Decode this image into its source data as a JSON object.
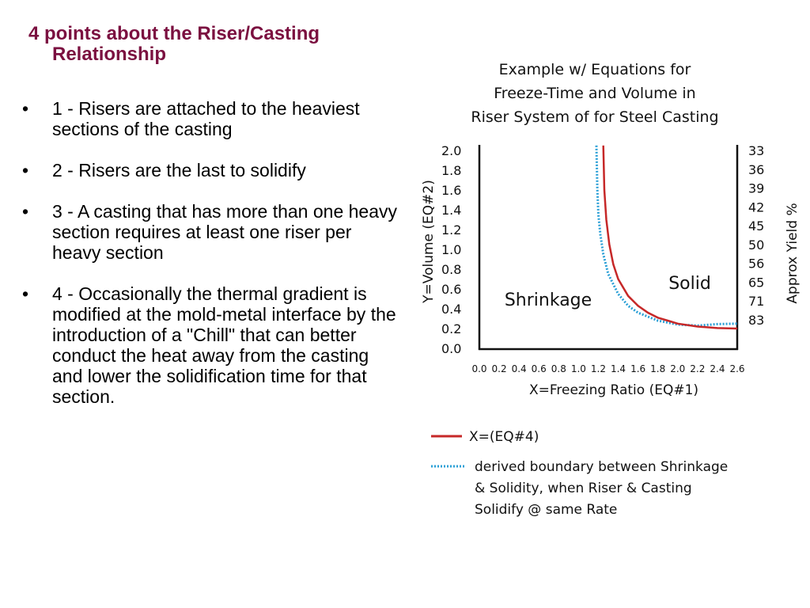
{
  "slide": {
    "title_line1": "4 points about the Riser/Casting",
    "title_line2": "Relationship",
    "bullets": [
      "1 - Risers are attached to the heaviest sections of the casting",
      "2 - Risers are the last to solidify",
      "3 - A casting that has more than one heavy section requires at least one riser per heavy section",
      "4 - Occasionally the thermal gradient is modified at the mold-metal interface by the introduction of a \"Chill\" that can better conduct the heat away from the casting and lower the solidification time for that section."
    ]
  },
  "colors": {
    "title": "#7b1040",
    "red_curve": "#c62828",
    "blue_curve": "#2a9fd6"
  },
  "chart_data": {
    "type": "line",
    "title": [
      "Example w/ Equations for",
      "Freeze-Time and Volume in",
      "Riser System of for Steel Casting"
    ],
    "xlabel": "X=Freezing Ratio (EQ#1)",
    "ylabel": "Y=Volume (EQ#2)",
    "y2label": "Approx Yield %",
    "xlim": [
      0.0,
      2.6
    ],
    "ylim": [
      0.0,
      2.0
    ],
    "x_ticks": [
      "0.0",
      "0.2",
      "0.4",
      "0.6",
      "0.8",
      "1.0",
      "1.2",
      "1.4",
      "1.6",
      "1.8",
      "2.0",
      "2.2",
      "2.4",
      "2.6"
    ],
    "y_ticks": [
      "2.0",
      "1.8",
      "1.6",
      "1.4",
      "1.2",
      "1.0",
      "0.8",
      "0.6",
      "0.4",
      "0.2",
      "0.0"
    ],
    "y2_ticks": [
      "33",
      "36",
      "39",
      "42",
      "45",
      "50",
      "56",
      "65",
      "71",
      "83"
    ],
    "region_labels": [
      "Shrinkage",
      "Solid"
    ],
    "grid": false,
    "series": [
      {
        "name": "X=(EQ#4)",
        "style": "solid",
        "points": [
          [
            1.25,
            2.05
          ],
          [
            1.26,
            1.6
          ],
          [
            1.28,
            1.3
          ],
          [
            1.31,
            1.05
          ],
          [
            1.35,
            0.85
          ],
          [
            1.4,
            0.7
          ],
          [
            1.5,
            0.53
          ],
          [
            1.6,
            0.43
          ],
          [
            1.7,
            0.36
          ],
          [
            1.8,
            0.31
          ],
          [
            1.9,
            0.28
          ],
          [
            2.0,
            0.25
          ],
          [
            2.2,
            0.22
          ],
          [
            2.4,
            0.205
          ],
          [
            2.6,
            0.2
          ]
        ]
      },
      {
        "name": "derived boundary between Shrinkage & Solidity, when Riser & Casting Solidify @ same Rate",
        "style": "dotted",
        "points": [
          [
            1.18,
            2.05
          ],
          [
            1.19,
            1.6
          ],
          [
            1.2,
            1.35
          ],
          [
            1.22,
            1.15
          ],
          [
            1.25,
            0.95
          ],
          [
            1.3,
            0.75
          ],
          [
            1.4,
            0.55
          ],
          [
            1.5,
            0.43
          ],
          [
            1.6,
            0.36
          ],
          [
            1.8,
            0.28
          ],
          [
            2.0,
            0.24
          ],
          [
            2.2,
            0.23
          ],
          [
            2.4,
            0.245
          ],
          [
            2.6,
            0.25
          ]
        ]
      }
    ],
    "legend": [
      {
        "label": "X=(EQ#4)"
      },
      {
        "label_lines": [
          "derived boundary between Shrinkage",
          "& Solidity, when Riser & Casting",
          "Solidify @ same Rate"
        ]
      }
    ]
  }
}
